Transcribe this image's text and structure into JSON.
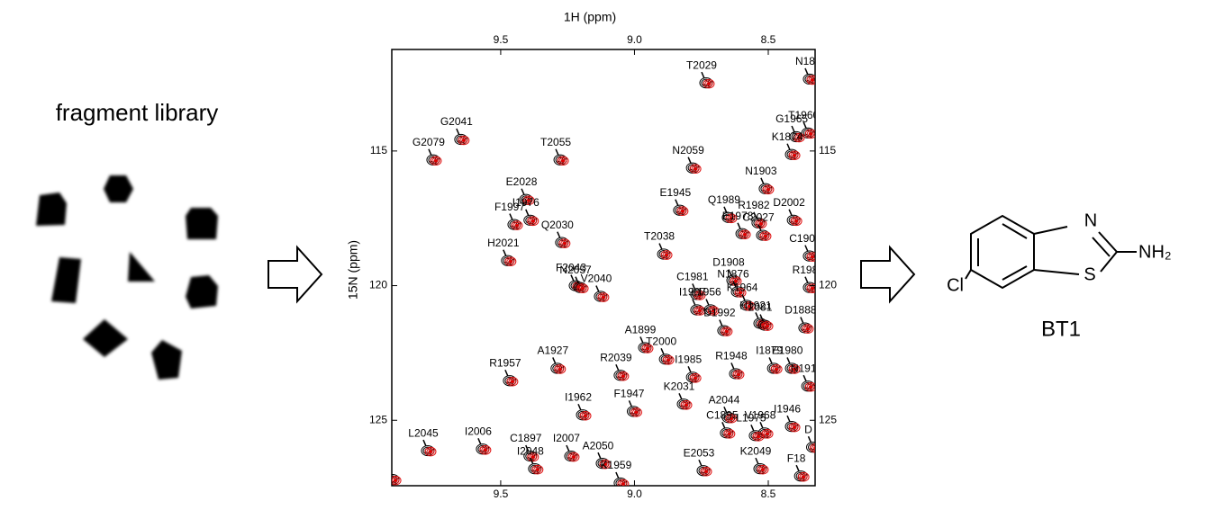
{
  "library": {
    "title": "fragment library"
  },
  "spectrum": {
    "xlabel": "1H (ppm)",
    "ylabel": "15N (ppm)",
    "xlim": [
      9.907,
      8.325
    ],
    "ylim": [
      111.23,
      127.43
    ],
    "xticks": [
      9.5,
      {
        "value": 9,
        "label": "9.0"
      },
      8.5
    ],
    "yticks": [
      115,
      120,
      125
    ],
    "peaks": [
      {
        "label": "T2029",
        "h": 8.729,
        "n": 112.47
      },
      {
        "label": "N18",
        "h": 8.342,
        "n": 112.33
      },
      {
        "label": "G2041",
        "h": 9.645,
        "n": 114.57
      },
      {
        "label": "T1960",
        "h": 8.348,
        "n": 114.33
      },
      {
        "label": "G2079",
        "h": 9.749,
        "n": 115.33
      },
      {
        "label": "T2055",
        "h": 9.274,
        "n": 115.33
      },
      {
        "label": "G1965",
        "h": 8.392,
        "n": 114.47
      },
      {
        "label": "K1874",
        "h": 8.409,
        "n": 115.13
      },
      {
        "label": "N2059",
        "h": 8.779,
        "n": 115.63
      },
      {
        "label": "N1903",
        "h": 8.507,
        "n": 116.4
      },
      {
        "label": "E2028",
        "h": 9.402,
        "n": 116.8
      },
      {
        "label": "E1945",
        "h": 8.827,
        "n": 117.2
      },
      {
        "label": "F1997",
        "h": 9.446,
        "n": 117.73
      },
      {
        "label": "I1976",
        "h": 9.386,
        "n": 117.57
      },
      {
        "label": "Q1989",
        "h": 8.645,
        "n": 117.47
      },
      {
        "label": "R1982",
        "h": 8.534,
        "n": 117.67
      },
      {
        "label": "D2002",
        "h": 8.402,
        "n": 117.57
      },
      {
        "label": "Q2030",
        "h": 9.268,
        "n": 118.4
      },
      {
        "label": "E1978",
        "h": 8.594,
        "n": 118.07
      },
      {
        "label": "C2027",
        "h": 8.517,
        "n": 118.13
      },
      {
        "label": "C1905",
        "h": 8.342,
        "n": 118.9
      },
      {
        "label": "H2021",
        "h": 9.47,
        "n": 119.07
      },
      {
        "label": "T2038",
        "h": 8.887,
        "n": 118.83
      },
      {
        "label": "F2043",
        "h": 9.217,
        "n": 120.0
      },
      {
        "label": "D1908",
        "h": 8.628,
        "n": 119.8
      },
      {
        "label": "N1876",
        "h": 8.611,
        "n": 120.23
      },
      {
        "label": "R198",
        "h": 8.342,
        "n": 120.07
      },
      {
        "label": "N2057",
        "h": 9.2,
        "n": 120.07
      },
      {
        "label": "C1981",
        "h": 8.763,
        "n": 120.33
      },
      {
        "label": "K1964",
        "h": 8.577,
        "n": 120.73
      },
      {
        "label": "I1907",
        "h": 8.763,
        "n": 120.9
      },
      {
        "label": "V2040",
        "h": 9.123,
        "n": 120.4
      },
      {
        "label": "L1956",
        "h": 8.712,
        "n": 120.9
      },
      {
        "label": "D1992",
        "h": 8.662,
        "n": 121.67
      },
      {
        "label": "H1921",
        "h": 8.527,
        "n": 121.4
      },
      {
        "label": "2081",
        "h": 8.51,
        "n": 121.47
      },
      {
        "label": "D1888",
        "h": 8.359,
        "n": 121.57
      },
      {
        "label": "A1899",
        "h": 8.958,
        "n": 122.3
      },
      {
        "label": "T2000",
        "h": 8.88,
        "n": 122.73
      },
      {
        "label": "E1980",
        "h": 8.409,
        "n": 123.07
      },
      {
        "label": "R1948",
        "h": 8.618,
        "n": 123.27
      },
      {
        "label": "A1927",
        "h": 9.285,
        "n": 123.07
      },
      {
        "label": "R1957",
        "h": 9.463,
        "n": 123.53
      },
      {
        "label": "R2039",
        "h": 9.049,
        "n": 123.33
      },
      {
        "label": "I1879",
        "h": 8.476,
        "n": 123.07
      },
      {
        "label": "N191",
        "h": 8.348,
        "n": 123.73
      },
      {
        "label": "I1985",
        "h": 8.779,
        "n": 123.4
      },
      {
        "label": "K2031",
        "h": 8.813,
        "n": 124.4
      },
      {
        "label": "I1962",
        "h": 9.19,
        "n": 124.8
      },
      {
        "label": "F1947",
        "h": 9.0,
        "n": 124.67
      },
      {
        "label": "A2044",
        "h": 8.645,
        "n": 124.9
      },
      {
        "label": "I1946",
        "h": 8.409,
        "n": 125.23
      },
      {
        "label": "V1968",
        "h": 8.51,
        "n": 125.47
      },
      {
        "label": "C1895",
        "h": 8.652,
        "n": 125.47
      },
      {
        "label": "L2045",
        "h": 9.769,
        "n": 126.13
      },
      {
        "label": "I2006",
        "h": 9.564,
        "n": 126.07
      },
      {
        "label": "C1897",
        "h": 9.386,
        "n": 126.33
      },
      {
        "label": "I2007",
        "h": 9.234,
        "n": 126.33
      },
      {
        "label": "L1975",
        "h": 8.544,
        "n": 125.57
      },
      {
        "label": "D",
        "h": 8.33,
        "n": 126.0
      },
      {
        "label": "A2050",
        "h": 9.116,
        "n": 126.6
      },
      {
        "label": "K2049",
        "h": 8.527,
        "n": 126.8
      },
      {
        "label": "F18",
        "h": 8.375,
        "n": 127.07
      },
      {
        "label": "K1959",
        "h": 9.049,
        "n": 127.33
      },
      {
        "label": "I2048",
        "h": 9.369,
        "n": 126.8
      },
      {
        "label": "E2053",
        "h": 8.739,
        "n": 126.87
      },
      {
        "label": "2",
        "h": 9.9,
        "n": 127.2
      }
    ]
  },
  "molecule": {
    "n_atom": "N",
    "nh2": "NH₂",
    "s_atom": "S",
    "cl": "Cl",
    "name": "BT1"
  }
}
